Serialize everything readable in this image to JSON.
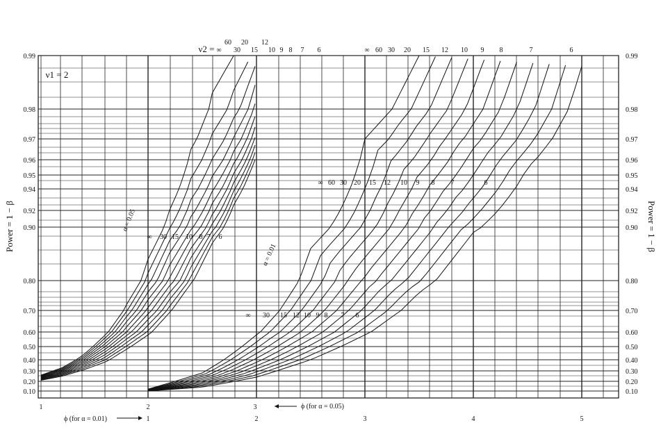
{
  "chart_data": {
    "type": "line",
    "title": "",
    "ylabel": "Power = 1 − β",
    "nu1_label": "ν1 = 2",
    "nu2_label": "ν2 =",
    "y_ticks": [
      0.1,
      0.2,
      0.3,
      0.4,
      0.5,
      0.6,
      0.7,
      0.8,
      0.9,
      0.92,
      0.94,
      0.95,
      0.96,
      0.97,
      0.98,
      0.99
    ],
    "y_tick_labels": [
      "0.10",
      "0.20",
      "0.30",
      "0.40",
      "0.50",
      "0.60",
      "0.70",
      "0.80",
      "0.90",
      "0.92",
      "0.94",
      "0.95",
      "0.96",
      "0.97",
      "0.98",
      "0.99"
    ],
    "ylim": [
      0.08,
      0.99
    ],
    "x_axis_alpha_05": {
      "label": "ϕ (for α = 0.05)",
      "ticks": [
        1,
        2,
        3
      ],
      "range": [
        1,
        3
      ]
    },
    "x_axis_alpha_01": {
      "label": "ϕ (for α = 0.01)",
      "ticks": [
        1,
        2,
        3,
        4,
        5
      ],
      "range": [
        1,
        5
      ]
    },
    "alpha_labels": [
      "α = 0.05",
      "α = 0.01"
    ],
    "nu2_values": [
      "∞",
      "60",
      "30",
      "20",
      "15",
      "12",
      "10",
      "9",
      "8",
      "7",
      "6"
    ],
    "mid_labels_05": [
      "∞",
      "30",
      "15",
      "10",
      "8",
      "7",
      "6"
    ],
    "mid_labels_01_upper": [
      "∞",
      "60",
      "30",
      "20",
      "15",
      "12",
      "10",
      "9",
      "8",
      "7",
      "6"
    ],
    "mid_labels_01_lower": [
      "∞",
      "30",
      "15",
      "12",
      "10",
      "9",
      "8",
      "7",
      "6"
    ],
    "series": [
      {
        "group": "alpha_0.05",
        "nu2": "∞",
        "x": [
          1.0,
          1.2,
          1.4,
          1.6,
          1.8,
          2.0,
          2.2,
          2.4,
          2.6,
          2.8,
          3.0
        ],
        "y": [
          0.26,
          0.33,
          0.44,
          0.58,
          0.72,
          0.84,
          0.92,
          0.965,
          0.983,
          0.99,
          0.995
        ]
      },
      {
        "group": "alpha_0.05",
        "nu2": "6",
        "x": [
          1.0,
          1.2,
          1.4,
          1.6,
          1.8,
          2.0,
          2.2,
          2.4,
          2.6,
          2.8,
          3.0
        ],
        "y": [
          0.21,
          0.25,
          0.31,
          0.38,
          0.48,
          0.58,
          0.69,
          0.79,
          0.87,
          0.925,
          0.96
        ]
      },
      {
        "group": "alpha_0.01",
        "nu2": "∞",
        "x": [
          1.0,
          1.5,
          2.0,
          2.5,
          3.0,
          3.5
        ],
        "y": [
          0.12,
          0.28,
          0.58,
          0.86,
          0.97,
          0.99
        ]
      },
      {
        "group": "alpha_0.01",
        "nu2": "6",
        "x": [
          1.0,
          1.5,
          2.0,
          2.5,
          3.0,
          3.5,
          4.0,
          4.5,
          5.0
        ],
        "y": [
          0.1,
          0.14,
          0.24,
          0.4,
          0.58,
          0.76,
          0.89,
          0.955,
          0.988
        ]
      }
    ]
  }
}
